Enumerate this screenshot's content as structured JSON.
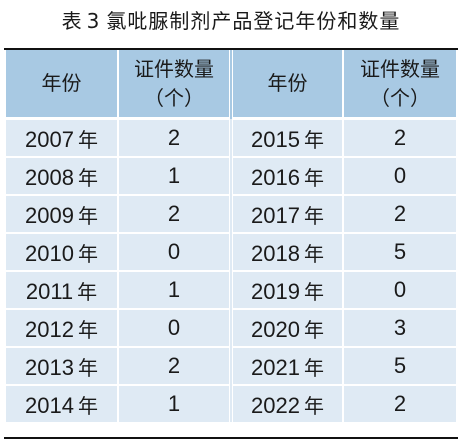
{
  "caption": {
    "label": "表",
    "number": "3",
    "title": "氯吡脲制剂产品登记年份和数量"
  },
  "table": {
    "headers": {
      "year": "年份",
      "count_line1": "证件数量",
      "count_line2": "（个）"
    },
    "year_unit": "年",
    "rows": [
      {
        "left_year": "2007",
        "left_count": "2",
        "right_year": "2015",
        "right_count": "2"
      },
      {
        "left_year": "2008",
        "left_count": "1",
        "right_year": "2016",
        "right_count": "0"
      },
      {
        "left_year": "2009",
        "left_count": "2",
        "right_year": "2017",
        "right_count": "2"
      },
      {
        "left_year": "2010",
        "left_count": "0",
        "right_year": "2018",
        "right_count": "5"
      },
      {
        "left_year": "2011",
        "left_count": "1",
        "right_year": "2019",
        "right_count": "0"
      },
      {
        "left_year": "2012",
        "left_count": "0",
        "right_year": "2020",
        "right_count": "3"
      },
      {
        "left_year": "2013",
        "left_count": "2",
        "right_year": "2021",
        "right_count": "5"
      },
      {
        "left_year": "2014",
        "left_count": "1",
        "right_year": "2022",
        "right_count": "2"
      }
    ]
  },
  "colors": {
    "header_bg": "#a8c9e3",
    "cell_bg": "#dfeaf4",
    "rule": "#111111"
  }
}
